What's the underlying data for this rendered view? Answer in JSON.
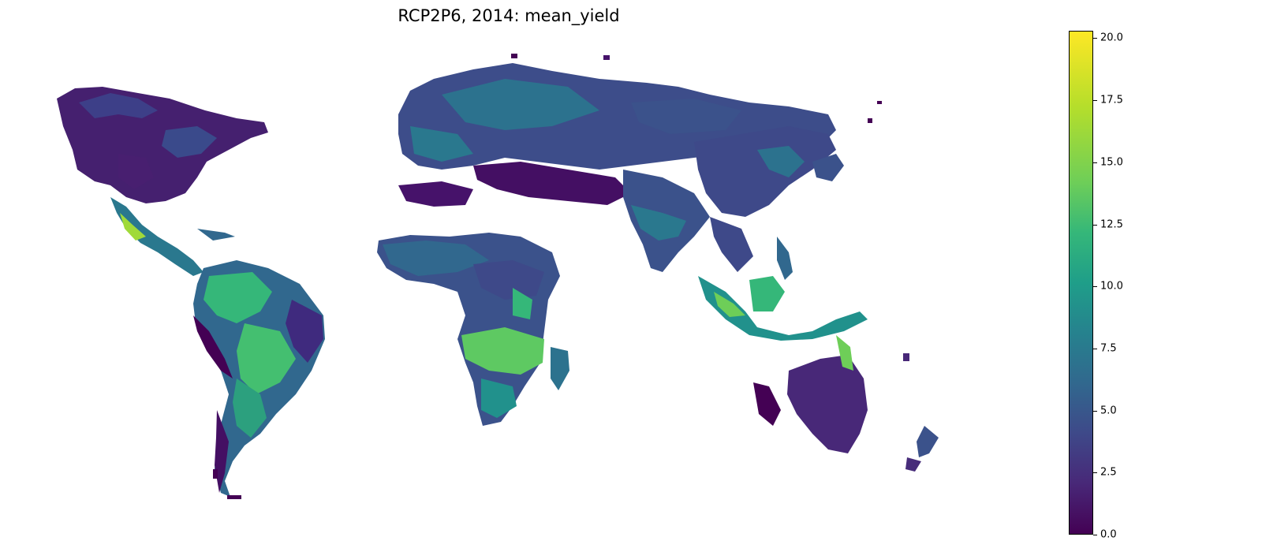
{
  "title": "RCP2P6, 2014: mean_yield",
  "colorbar": {
    "min": 0.0,
    "max": 20.3,
    "colormap": "viridis",
    "ticks": [
      "0.0",
      "2.5",
      "5.0",
      "7.5",
      "10.0",
      "12.5",
      "15.0",
      "17.5",
      "20.0"
    ],
    "tick_values": [
      0.0,
      2.5,
      5.0,
      7.5,
      10.0,
      12.5,
      15.0,
      17.5,
      20.0
    ]
  },
  "colors": {
    "low": "#440154",
    "mid_low": "#3b528b",
    "mid": "#21918c",
    "mid_high": "#5ec962",
    "high": "#fde725"
  }
}
